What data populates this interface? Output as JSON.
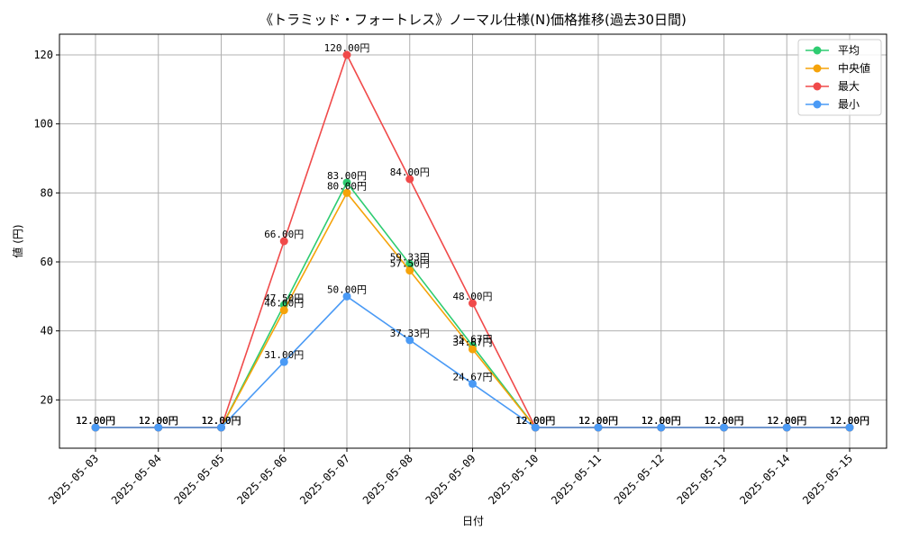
{
  "chart_data": {
    "type": "line",
    "title": "《トラミッド・フォートレス》ノーマル仕様(N)価格推移(過去30日間)",
    "xlabel": "日付",
    "ylabel": "値 (円)",
    "ylim": [
      6,
      126
    ],
    "yticks": [
      20,
      40,
      60,
      80,
      100,
      120
    ],
    "grid": true,
    "legend_position": "top-right",
    "label_suffix": "円",
    "categories": [
      "2025-05-03",
      "2025-05-04",
      "2025-05-05",
      "2025-05-06",
      "2025-05-07",
      "2025-05-08",
      "2025-05-09",
      "2025-05-10",
      "2025-05-11",
      "2025-05-12",
      "2025-05-13",
      "2025-05-14",
      "2025-05-15"
    ],
    "series": [
      {
        "name": "平均",
        "color": "#2ecc71",
        "values": [
          12,
          12,
          12,
          47.5,
          83,
          59.33,
          35.67,
          12,
          12,
          12,
          12,
          12,
          12
        ]
      },
      {
        "name": "中央値",
        "color": "#f5a30a",
        "values": [
          12,
          12,
          12,
          46,
          80,
          57.5,
          34.67,
          12,
          12,
          12,
          12,
          12,
          12
        ]
      },
      {
        "name": "最大",
        "color": "#f04a4a",
        "values": [
          12,
          12,
          12,
          66,
          120,
          84,
          48,
          12,
          12,
          12,
          12,
          12,
          12
        ]
      },
      {
        "name": "最小",
        "color": "#4a9af5",
        "values": [
          12,
          12,
          12,
          31,
          50,
          37.33,
          24.67,
          12,
          12,
          12,
          12,
          12,
          12
        ]
      }
    ]
  }
}
